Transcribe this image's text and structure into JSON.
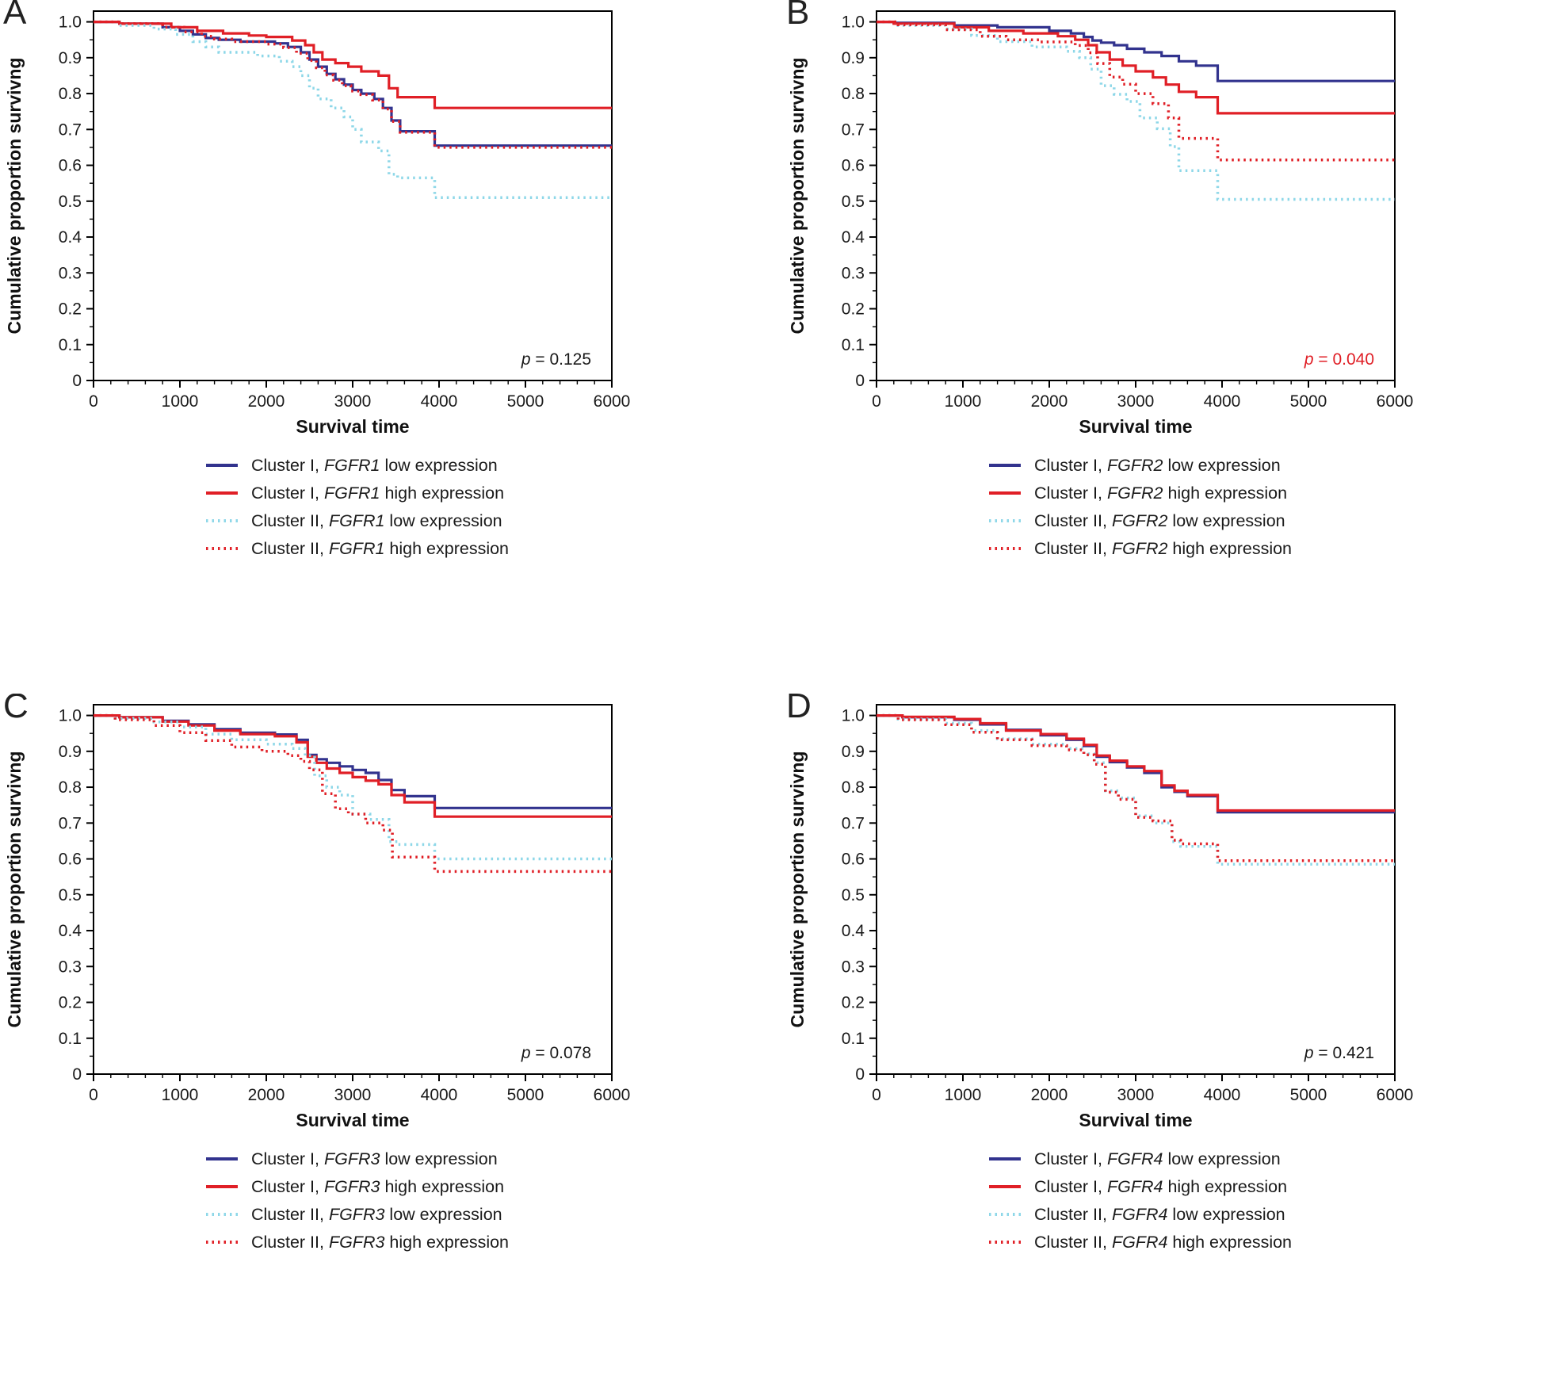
{
  "figure": {
    "description": "Kaplan-Meier cumulative survival curves by cluster and FGFR expression",
    "xlabel": "Survival time",
    "ylabel": "Cumulative proportion survivng"
  },
  "colors": {
    "cluster1_low": "#32338e",
    "cluster1_high": "#e01f26",
    "cluster2_low": "#8dd7e8",
    "cluster2_high": "#e01f26",
    "axis": "#000000",
    "p_highlight": "#e01f26"
  },
  "chart_data": [
    {
      "panel": "A",
      "type": "line",
      "gene": "FGFR1",
      "xlabel": "Survival time",
      "ylabel": "Cumulative proportion survivng",
      "xlim": [
        0,
        6000
      ],
      "ylim": [
        0,
        1.0
      ],
      "xticks": [
        0,
        1000,
        2000,
        3000,
        4000,
        5000,
        6000
      ],
      "yticks": [
        0,
        0.1,
        0.2,
        0.3,
        0.4,
        0.5,
        0.6,
        0.7,
        0.8,
        0.9,
        1.0
      ],
      "p_value": "0.125",
      "p_color": "#1a1a1a",
      "series": [
        {
          "name": "Cluster I, FGFR1 low expression",
          "label_prefix": "Cluster I, ",
          "gene": "FGFR1",
          "label_suffix": " low expression",
          "color": "#32338e",
          "dash": null,
          "x": [
            0,
            300,
            800,
            1000,
            1150,
            1300,
            1450,
            1700,
            2100,
            2250,
            2400,
            2500,
            2600,
            2700,
            2800,
            2900,
            3000,
            3100,
            3250,
            3350,
            3450,
            3550,
            3950,
            6000
          ],
          "y": [
            1.0,
            0.995,
            0.985,
            0.975,
            0.965,
            0.955,
            0.95,
            0.945,
            0.94,
            0.93,
            0.915,
            0.895,
            0.875,
            0.855,
            0.84,
            0.825,
            0.81,
            0.8,
            0.785,
            0.76,
            0.725,
            0.695,
            0.655,
            0.655
          ]
        },
        {
          "name": "Cluster I, FGFR1 high expression",
          "label_prefix": "Cluster I, ",
          "gene": "FGFR1",
          "label_suffix": " high expression",
          "color": "#e01f26",
          "dash": null,
          "x": [
            0,
            300,
            900,
            1200,
            1500,
            1800,
            2000,
            2300,
            2450,
            2550,
            2650,
            2800,
            2950,
            3100,
            3300,
            3420,
            3520,
            3950,
            6000
          ],
          "y": [
            1.0,
            0.995,
            0.985,
            0.975,
            0.968,
            0.962,
            0.958,
            0.948,
            0.935,
            0.915,
            0.895,
            0.885,
            0.875,
            0.862,
            0.85,
            0.815,
            0.79,
            0.76,
            0.76
          ]
        },
        {
          "name": "Cluster II, FGFR1 low expression",
          "label_prefix": "Cluster II, ",
          "gene": "FGFR1",
          "label_suffix": " low expression",
          "color": "#8dd7e8",
          "dash": "2.5 5",
          "x": [
            0,
            300,
            700,
            950,
            1150,
            1300,
            1450,
            1900,
            2150,
            2300,
            2400,
            2500,
            2600,
            2750,
            2900,
            3000,
            3100,
            3300,
            3420,
            3520,
            3950,
            6000
          ],
          "y": [
            1.0,
            0.99,
            0.98,
            0.965,
            0.945,
            0.93,
            0.915,
            0.905,
            0.89,
            0.875,
            0.85,
            0.815,
            0.785,
            0.76,
            0.735,
            0.7,
            0.665,
            0.64,
            0.575,
            0.565,
            0.51,
            0.51
          ]
        },
        {
          "name": "Cluster II, FGFR1 high expression",
          "label_prefix": "Cluster II, ",
          "gene": "FGFR1",
          "label_suffix": " high expression",
          "color": "#e01f26",
          "dash": "2.5 5",
          "x": [
            0,
            300,
            800,
            1050,
            1250,
            1400,
            1600,
            2000,
            2200,
            2350,
            2480,
            2580,
            2680,
            2780,
            2880,
            2980,
            3080,
            3230,
            3350,
            3450,
            3550,
            3950,
            6000
          ],
          "y": [
            1.0,
            0.995,
            0.985,
            0.972,
            0.96,
            0.952,
            0.945,
            0.938,
            0.928,
            0.912,
            0.892,
            0.872,
            0.852,
            0.837,
            0.822,
            0.807,
            0.797,
            0.782,
            0.757,
            0.722,
            0.692,
            0.65,
            0.65
          ]
        }
      ]
    },
    {
      "panel": "B",
      "type": "line",
      "gene": "FGFR2",
      "xlabel": "Survival time",
      "ylabel": "Cumulative proportion survivng",
      "xlim": [
        0,
        6000
      ],
      "ylim": [
        0,
        1.0
      ],
      "xticks": [
        0,
        1000,
        2000,
        3000,
        4000,
        5000,
        6000
      ],
      "yticks": [
        0,
        0.1,
        0.2,
        0.3,
        0.4,
        0.5,
        0.6,
        0.7,
        0.8,
        0.9,
        1.0
      ],
      "p_value": "0.040",
      "p_color": "#e01f26",
      "series": [
        {
          "name": "Cluster I, FGFR2 low expression",
          "label_prefix": "Cluster I, ",
          "gene": "FGFR2",
          "label_suffix": " low expression",
          "color": "#32338e",
          "dash": null,
          "x": [
            0,
            200,
            900,
            1400,
            2000,
            2250,
            2400,
            2500,
            2600,
            2750,
            2900,
            3100,
            3300,
            3500,
            3700,
            3950,
            6000
          ],
          "y": [
            1.0,
            0.997,
            0.99,
            0.985,
            0.975,
            0.968,
            0.958,
            0.948,
            0.942,
            0.935,
            0.925,
            0.915,
            0.905,
            0.89,
            0.878,
            0.835,
            0.835
          ]
        },
        {
          "name": "Cluster I, FGFR2 high expression",
          "label_prefix": "Cluster I, ",
          "gene": "FGFR2",
          "label_suffix": " high expression",
          "color": "#e01f26",
          "dash": null,
          "x": [
            0,
            200,
            900,
            1300,
            1700,
            2100,
            2300,
            2450,
            2550,
            2700,
            2850,
            3000,
            3200,
            3350,
            3500,
            3700,
            3950,
            6000
          ],
          "y": [
            1.0,
            0.995,
            0.985,
            0.975,
            0.968,
            0.96,
            0.95,
            0.935,
            0.915,
            0.895,
            0.878,
            0.862,
            0.845,
            0.825,
            0.805,
            0.79,
            0.745,
            0.745
          ]
        },
        {
          "name": "Cluster II, FGFR2 low expression",
          "label_prefix": "Cluster II, ",
          "gene": "FGFR2",
          "label_suffix": " low expression",
          "color": "#8dd7e8",
          "dash": "2.5 5",
          "x": [
            0,
            250,
            800,
            1100,
            1400,
            1800,
            2200,
            2350,
            2480,
            2600,
            2750,
            2900,
            3050,
            3250,
            3400,
            3500,
            3950,
            6000
          ],
          "y": [
            1.0,
            0.99,
            0.98,
            0.962,
            0.945,
            0.93,
            0.918,
            0.9,
            0.868,
            0.822,
            0.798,
            0.778,
            0.732,
            0.702,
            0.652,
            0.585,
            0.505,
            0.505
          ]
        },
        {
          "name": "Cluster II, FGFR2 high expression",
          "label_prefix": "Cluster II, ",
          "gene": "FGFR2",
          "label_suffix": " high expression",
          "color": "#e01f26",
          "dash": "2.5 5",
          "x": [
            0,
            250,
            800,
            1200,
            1500,
            1900,
            2300,
            2450,
            2560,
            2700,
            2850,
            3000,
            3200,
            3380,
            3500,
            3950,
            6000
          ],
          "y": [
            1.0,
            0.992,
            0.978,
            0.96,
            0.95,
            0.944,
            0.934,
            0.914,
            0.884,
            0.846,
            0.826,
            0.8,
            0.772,
            0.732,
            0.675,
            0.615,
            0.615
          ]
        }
      ]
    },
    {
      "panel": "C",
      "type": "line",
      "gene": "FGFR3",
      "xlabel": "Survival time",
      "ylabel": "Cumulative proportion survivng",
      "xlim": [
        0,
        6000
      ],
      "ylim": [
        0,
        1.0
      ],
      "xticks": [
        0,
        1000,
        2000,
        3000,
        4000,
        5000,
        6000
      ],
      "yticks": [
        0,
        0.1,
        0.2,
        0.3,
        0.4,
        0.5,
        0.6,
        0.7,
        0.8,
        0.9,
        1.0
      ],
      "p_value": "0.078",
      "p_color": "#1a1a1a",
      "series": [
        {
          "name": "Cluster I, FGFR3 low expression",
          "label_prefix": "Cluster I, ",
          "gene": "FGFR3",
          "label_suffix": " low expression",
          "color": "#32338e",
          "dash": null,
          "x": [
            0,
            300,
            800,
            1100,
            1400,
            1700,
            2100,
            2350,
            2480,
            2580,
            2700,
            2850,
            3000,
            3150,
            3300,
            3450,
            3600,
            3950,
            6000
          ],
          "y": [
            1.0,
            0.995,
            0.985,
            0.975,
            0.962,
            0.952,
            0.947,
            0.932,
            0.89,
            0.878,
            0.868,
            0.858,
            0.848,
            0.84,
            0.82,
            0.792,
            0.775,
            0.742,
            0.742
          ]
        },
        {
          "name": "Cluster I, FGFR3 high expression",
          "label_prefix": "Cluster I, ",
          "gene": "FGFR3",
          "label_suffix": " high expression",
          "color": "#e01f26",
          "dash": null,
          "x": [
            0,
            300,
            800,
            1100,
            1400,
            1700,
            2100,
            2350,
            2480,
            2580,
            2700,
            2850,
            3000,
            3150,
            3300,
            3450,
            3600,
            3950,
            6000
          ],
          "y": [
            1.0,
            0.995,
            0.983,
            0.972,
            0.958,
            0.948,
            0.942,
            0.925,
            0.885,
            0.868,
            0.852,
            0.84,
            0.828,
            0.818,
            0.808,
            0.778,
            0.758,
            0.718,
            0.718
          ]
        },
        {
          "name": "Cluster II, FGFR3 low expression",
          "label_prefix": "Cluster II, ",
          "gene": "FGFR3",
          "label_suffix": " low expression",
          "color": "#8dd7e8",
          "dash": "2.5 5",
          "x": [
            0,
            250,
            700,
            1000,
            1300,
            1600,
            2000,
            2300,
            2450,
            2560,
            2700,
            2850,
            3000,
            3200,
            3420,
            3520,
            3950,
            6000
          ],
          "y": [
            1.0,
            0.992,
            0.982,
            0.968,
            0.948,
            0.932,
            0.92,
            0.908,
            0.888,
            0.832,
            0.8,
            0.778,
            0.725,
            0.71,
            0.648,
            0.64,
            0.6,
            0.6
          ]
        },
        {
          "name": "Cluster II, FGFR3 high expression",
          "label_prefix": "Cluster II, ",
          "gene": "FGFR3",
          "label_suffix": " high expression",
          "color": "#e01f26",
          "dash": "2.5 5",
          "x": [
            0,
            250,
            700,
            1000,
            1300,
            1600,
            1950,
            2250,
            2400,
            2500,
            2650,
            2800,
            2950,
            3150,
            3350,
            3460,
            3950,
            6000
          ],
          "y": [
            1.0,
            0.988,
            0.972,
            0.952,
            0.93,
            0.912,
            0.9,
            0.888,
            0.872,
            0.848,
            0.782,
            0.74,
            0.725,
            0.7,
            0.68,
            0.605,
            0.565,
            0.565
          ]
        }
      ]
    },
    {
      "panel": "D",
      "type": "line",
      "gene": "FGFR4",
      "xlabel": "Survival time",
      "ylabel": "Cumulative proportion survivng",
      "xlim": [
        0,
        6000
      ],
      "ylim": [
        0,
        1.0
      ],
      "xticks": [
        0,
        1000,
        2000,
        3000,
        4000,
        5000,
        6000
      ],
      "yticks": [
        0,
        0.1,
        0.2,
        0.3,
        0.4,
        0.5,
        0.6,
        0.7,
        0.8,
        0.9,
        1.0
      ],
      "p_value": "0.421",
      "p_color": "#1a1a1a",
      "series": [
        {
          "name": "Cluster I, FGFR4 low expression",
          "label_prefix": "Cluster I, ",
          "gene": "FGFR4",
          "label_suffix": " low expression",
          "color": "#32338e",
          "dash": null,
          "x": [
            0,
            300,
            900,
            1200,
            1500,
            1900,
            2200,
            2400,
            2550,
            2700,
            2900,
            3100,
            3300,
            3450,
            3600,
            3950,
            6000
          ],
          "y": [
            1.0,
            0.995,
            0.988,
            0.975,
            0.96,
            0.945,
            0.932,
            0.915,
            0.885,
            0.87,
            0.855,
            0.84,
            0.8,
            0.787,
            0.775,
            0.73,
            0.73
          ]
        },
        {
          "name": "Cluster I, FGFR4 high expression",
          "label_prefix": "Cluster I, ",
          "gene": "FGFR4",
          "label_suffix": " high expression",
          "color": "#e01f26",
          "dash": null,
          "x": [
            0,
            300,
            900,
            1200,
            1500,
            1900,
            2200,
            2400,
            2550,
            2700,
            2900,
            3100,
            3300,
            3450,
            3600,
            3950,
            6000
          ],
          "y": [
            1.0,
            0.996,
            0.99,
            0.978,
            0.958,
            0.948,
            0.935,
            0.918,
            0.888,
            0.874,
            0.858,
            0.845,
            0.805,
            0.79,
            0.778,
            0.735,
            0.735
          ]
        },
        {
          "name": "Cluster II, FGFR4 low expression",
          "label_prefix": "Cluster II, ",
          "gene": "FGFR4",
          "label_suffix": " low expression",
          "color": "#8dd7e8",
          "dash": "2.5 5",
          "x": [
            0,
            250,
            800,
            1100,
            1400,
            1800,
            2200,
            2400,
            2520,
            2650,
            2800,
            3000,
            3200,
            3420,
            3520,
            3950,
            6000
          ],
          "y": [
            1.0,
            0.99,
            0.978,
            0.958,
            0.935,
            0.92,
            0.908,
            0.893,
            0.868,
            0.79,
            0.77,
            0.72,
            0.7,
            0.648,
            0.635,
            0.585,
            0.585
          ]
        },
        {
          "name": "Cluster II, FGFR4 high expression",
          "label_prefix": "Cluster II, ",
          "gene": "FGFR4",
          "label_suffix": " high expression",
          "color": "#e01f26",
          "dash": "2.5 5",
          "x": [
            0,
            250,
            800,
            1100,
            1400,
            1800,
            2200,
            2400,
            2520,
            2650,
            2800,
            3000,
            3200,
            3420,
            3520,
            3950,
            6000
          ],
          "y": [
            1.0,
            0.988,
            0.974,
            0.953,
            0.932,
            0.916,
            0.904,
            0.89,
            0.864,
            0.786,
            0.766,
            0.716,
            0.706,
            0.652,
            0.642,
            0.595,
            0.595
          ]
        }
      ]
    }
  ]
}
